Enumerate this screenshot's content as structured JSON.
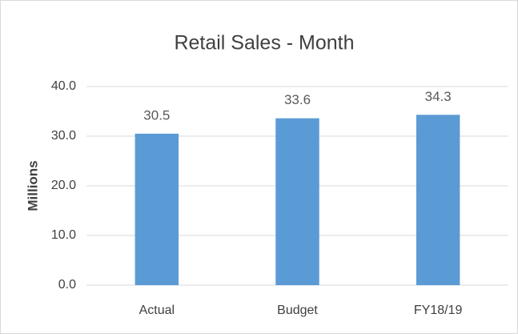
{
  "chart_data": {
    "type": "bar",
    "title": "Retail Sales - Month",
    "ylabel": "Millions",
    "categories": [
      "Actual",
      "Budget",
      "FY18/19"
    ],
    "values": [
      30.5,
      33.6,
      34.3
    ],
    "color": "#5b9bd5",
    "ylim": [
      0,
      40
    ],
    "yticks": [
      {
        "value": 0,
        "label": "0.0"
      },
      {
        "value": 10,
        "label": "10.0"
      },
      {
        "value": 20,
        "label": "20.0"
      },
      {
        "value": 30,
        "label": "30.0"
      },
      {
        "value": 40,
        "label": "40.0"
      }
    ],
    "grid": true
  }
}
